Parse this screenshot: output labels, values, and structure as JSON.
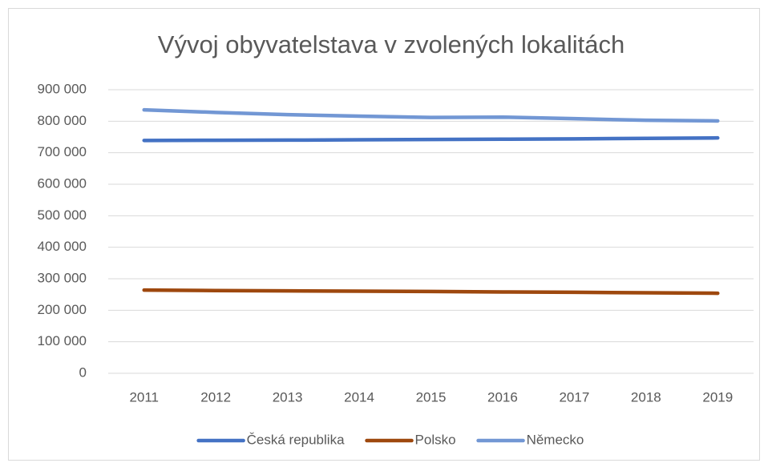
{
  "chart_data": {
    "type": "line",
    "title": "Vývoj obyvatelstava v zvolených lokalitách",
    "categories": [
      "2011",
      "2012",
      "2013",
      "2014",
      "2015",
      "2016",
      "2017",
      "2018",
      "2019"
    ],
    "series": [
      {
        "name": "Česká republika",
        "color": "#4472c4",
        "values": [
          739000,
          739500,
          740000,
          741000,
          742000,
          743000,
          744000,
          745500,
          747000
        ]
      },
      {
        "name": "Polsko",
        "color": "#9e480e",
        "values": [
          264000,
          262500,
          261500,
          260500,
          259500,
          258000,
          257000,
          255500,
          254000
        ]
      },
      {
        "name": "Německo",
        "color": "#7297d4",
        "values": [
          836000,
          828000,
          821000,
          816000,
          812000,
          813000,
          808000,
          803000,
          801000
        ]
      }
    ],
    "ylim": [
      0,
      900000
    ],
    "yticks": [
      0,
      {
        "value": 100000,
        "label": "100 000"
      },
      {
        "value": 200000,
        "label": "200 000"
      },
      {
        "value": 300000,
        "label": "300 000"
      },
      {
        "value": 400000,
        "label": "400 000"
      },
      {
        "value": 500000,
        "label": "500 000"
      },
      {
        "value": 600000,
        "label": "600 000"
      },
      {
        "value": 700000,
        "label": "700 000"
      },
      {
        "value": 800000,
        "label": "800 000"
      },
      {
        "value": 900000,
        "label": "900 000"
      }
    ],
    "grid": true,
    "legend": "bottom"
  }
}
